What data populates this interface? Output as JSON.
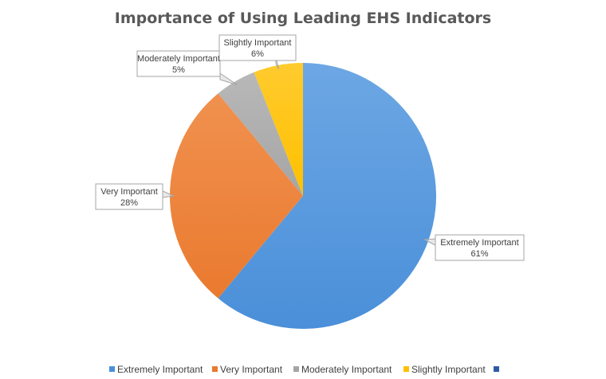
{
  "chart_data": {
    "type": "pie",
    "title": "Importance of Using Leading EHS Indicators",
    "slices": [
      {
        "label": "Extremely Important",
        "value": 61,
        "value_label": "61%",
        "color": "#4A8FD9",
        "color_light": "#6DA7E4"
      },
      {
        "label": "Very Important",
        "value": 28,
        "value_label": "28%",
        "color": "#EA7A2F",
        "color_light": "#F0914F"
      },
      {
        "label": "Moderately Important",
        "value": 5,
        "value_label": "5%",
        "color": "#A5A5A5",
        "color_light": "#B8B8B8"
      },
      {
        "label": "Slightly Important",
        "value": 6,
        "value_label": "6%",
        "color": "#FFC000",
        "color_light": "#FFCB2E"
      }
    ],
    "start_angle_deg": 0,
    "direction": "clockwise",
    "legend": {
      "position": "bottom",
      "entries": [
        "Extremely Important",
        "Very Important",
        "Moderately Important",
        "Slightly Important",
        ""
      ],
      "extra_marker_color": "#2E5AA6"
    }
  }
}
